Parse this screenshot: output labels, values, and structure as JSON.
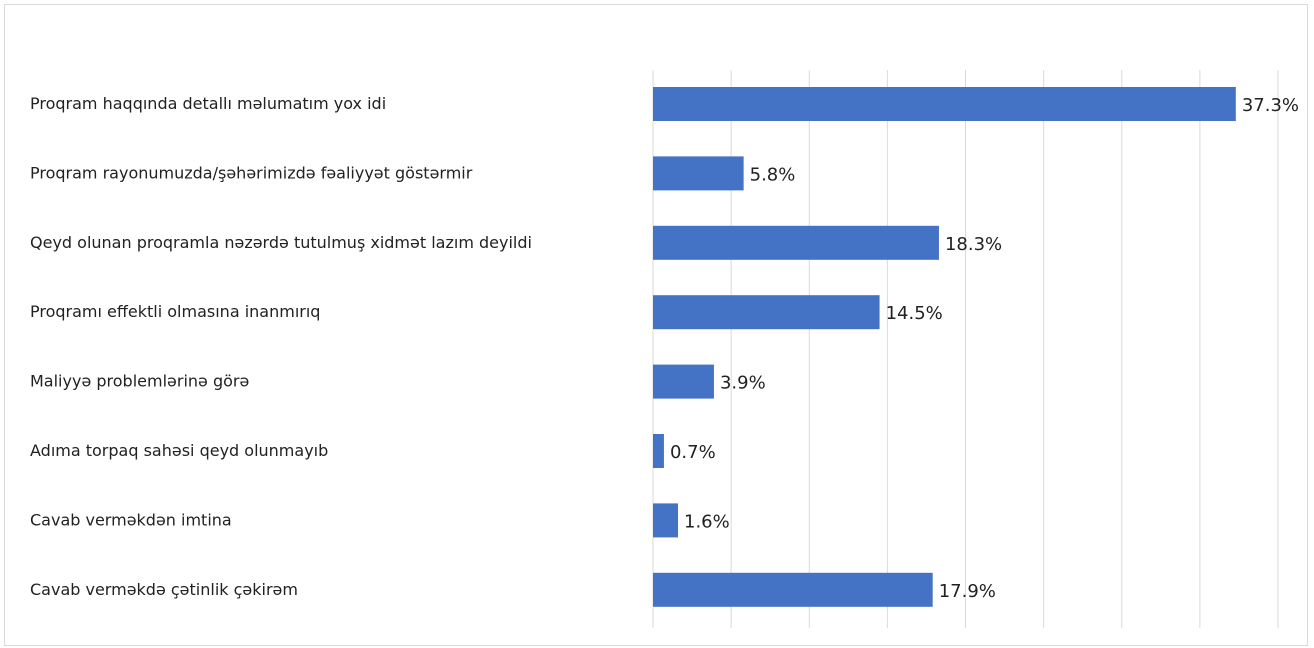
{
  "chart_data": {
    "type": "bar",
    "orientation": "horizontal",
    "categories": [
      "Proqram haqqında detallı məlumatım yox idi",
      "Proqram rayonumuzda/şəhərimizdə fəaliyyət göstərmir",
      "Qeyd olunan proqramla nəzərdə tutulmuş xidmət lazım deyildi",
      "Proqramı effektli olmasına inanmırıq",
      "Maliyyə problemlərinə görə",
      "Adıma torpaq sahəsi qeyd olunmayıb",
      "Cavab verməkdən imtina",
      "Cavab verməkdə çətinlik çəkirəm"
    ],
    "values": [
      37.3,
      5.8,
      18.3,
      14.5,
      3.9,
      0.7,
      1.6,
      17.9
    ],
    "value_labels": [
      "37.3%",
      "5.8%",
      "18.3%",
      "14.5%",
      "3.9%",
      "0.7%",
      "1.6%",
      "17.9%"
    ],
    "xlim": [
      0,
      40
    ],
    "grid": true,
    "legend": "none",
    "bar_color": "#4472c4"
  }
}
